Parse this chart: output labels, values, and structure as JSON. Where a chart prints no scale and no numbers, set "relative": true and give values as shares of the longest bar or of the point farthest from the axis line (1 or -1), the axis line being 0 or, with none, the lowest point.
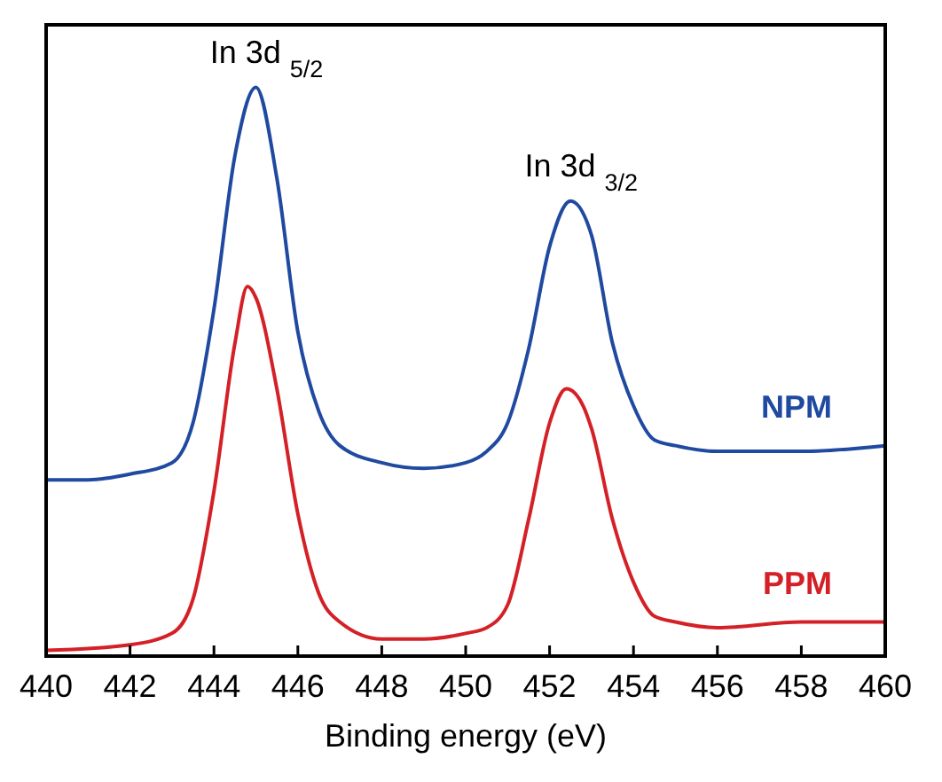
{
  "chart_data": {
    "type": "line",
    "relative": true,
    "xlabel": "Binding energy (eV)",
    "xlim": [
      440,
      460
    ],
    "xticks": [
      440,
      442,
      444,
      446,
      448,
      450,
      452,
      454,
      456,
      458,
      460
    ],
    "legend": false,
    "grid": false,
    "marker": "none",
    "line_style": "solid",
    "x": [
      440,
      441,
      442,
      443,
      443.5,
      444,
      444.5,
      445,
      445.5,
      446,
      446.5,
      447,
      448,
      449,
      450,
      450.5,
      451,
      451.5,
      452,
      452.5,
      453,
      453.5,
      454,
      454.5,
      455,
      456,
      458,
      460
    ],
    "series": [
      {
        "name": "NPM",
        "color": "#1f4aa0",
        "values": [
          0.31,
          0.31,
          0.32,
          0.34,
          0.41,
          0.61,
          0.88,
          1.0,
          0.84,
          0.57,
          0.43,
          0.37,
          0.34,
          0.33,
          0.34,
          0.36,
          0.41,
          0.54,
          0.72,
          0.8,
          0.74,
          0.55,
          0.44,
          0.38,
          0.37,
          0.36,
          0.36,
          0.37
        ]
      },
      {
        "name": "PPM",
        "color": "#d42027",
        "x": [
          440,
          442,
          443,
          443.5,
          444,
          444.5,
          444.8,
          445,
          445.5,
          446,
          446.5,
          447,
          448,
          449,
          450,
          450.5,
          451,
          451.5,
          452,
          452.4,
          452.8,
          453,
          453.5,
          454,
          454.5,
          455,
          456,
          458,
          460
        ],
        "values": [
          0.01,
          0.02,
          0.04,
          0.1,
          0.29,
          0.55,
          0.65,
          0.63,
          0.47,
          0.25,
          0.11,
          0.06,
          0.03,
          0.03,
          0.04,
          0.05,
          0.09,
          0.24,
          0.41,
          0.47,
          0.44,
          0.4,
          0.24,
          0.13,
          0.07,
          0.06,
          0.05,
          0.06,
          0.06
        ]
      }
    ],
    "annotations": [
      {
        "text": "In 3d $_{5/2}$",
        "x": 445,
        "y": 1.0
      },
      {
        "text": "In 3d $_{3/2}$",
        "x": 452.5,
        "y": 0.8
      }
    ]
  }
}
